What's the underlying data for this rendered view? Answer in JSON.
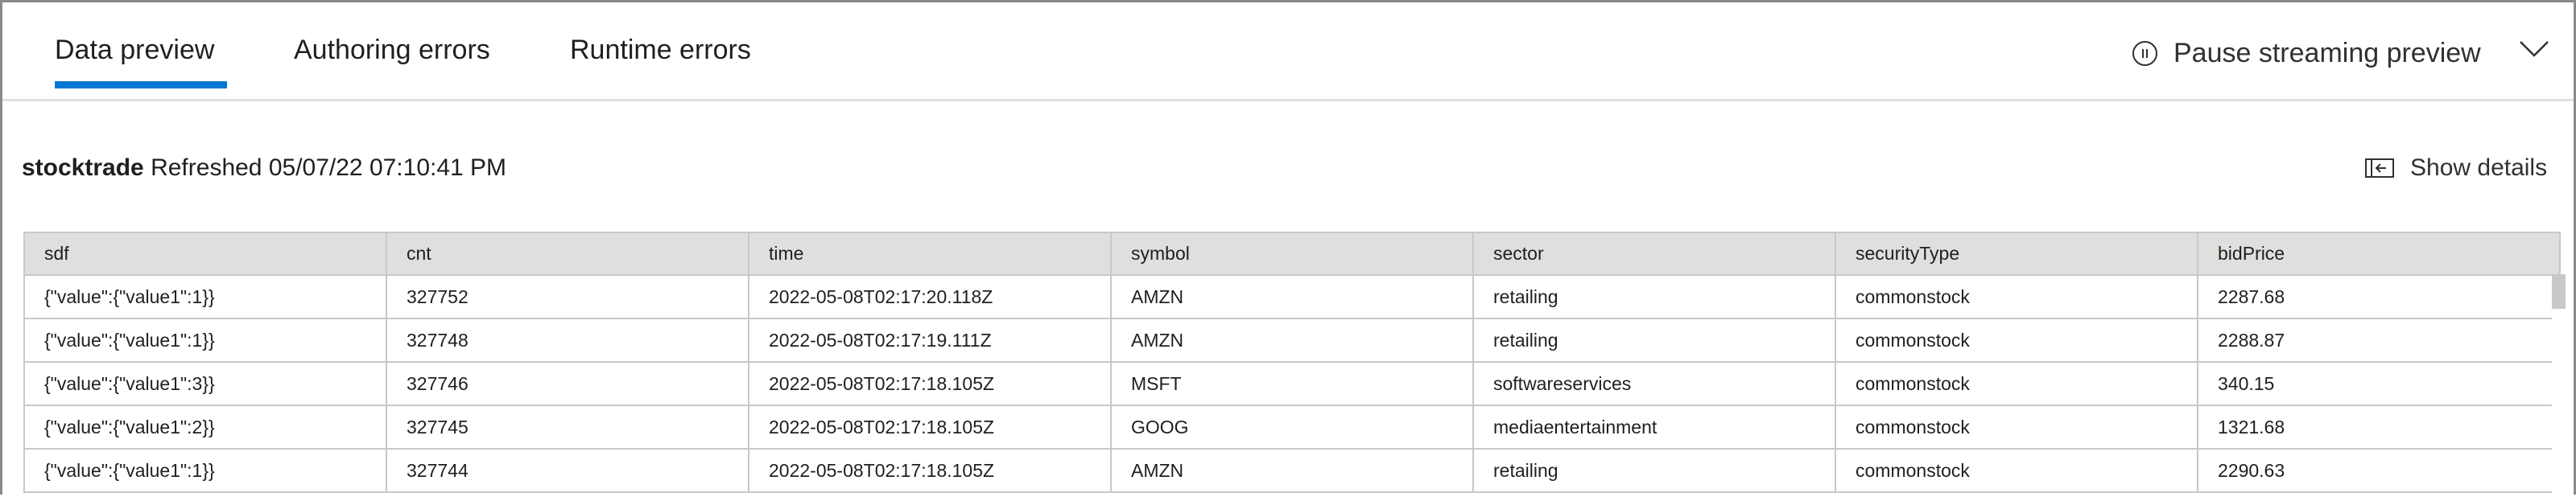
{
  "tabs": [
    {
      "label": "Data preview",
      "active": true
    },
    {
      "label": "Authoring errors",
      "active": false
    },
    {
      "label": "Runtime errors",
      "active": false
    }
  ],
  "accent_color": "#0078d4",
  "toolbar": {
    "pause_label": "Pause streaming preview",
    "pause_icon": "pause-circle-icon",
    "expand_icon": "chevron-down-icon"
  },
  "preview": {
    "name": "stocktrade",
    "refreshed": "Refreshed 05/07/22 07:10:41 PM",
    "show_details_label": "Show details"
  },
  "table": {
    "columns": [
      "sdf",
      "cnt",
      "time",
      "symbol",
      "sector",
      "securityType",
      "bidPrice"
    ],
    "rows": [
      [
        "{\"value\":{\"value1\":1}}",
        "327752",
        "2022-05-08T02:17:20.118Z",
        "AMZN",
        "retailing",
        "commonstock",
        "2287.68"
      ],
      [
        "{\"value\":{\"value1\":1}}",
        "327748",
        "2022-05-08T02:17:19.111Z",
        "AMZN",
        "retailing",
        "commonstock",
        "2288.87"
      ],
      [
        "{\"value\":{\"value1\":3}}",
        "327746",
        "2022-05-08T02:17:18.105Z",
        "MSFT",
        "softwareservices",
        "commonstock",
        "340.15"
      ],
      [
        "{\"value\":{\"value1\":2}}",
        "327745",
        "2022-05-08T02:17:18.105Z",
        "GOOG",
        "mediaentertainment",
        "commonstock",
        "1321.68"
      ],
      [
        "{\"value\":{\"value1\":1}}",
        "327744",
        "2022-05-08T02:17:18.105Z",
        "AMZN",
        "retailing",
        "commonstock",
        "2290.63"
      ]
    ]
  }
}
